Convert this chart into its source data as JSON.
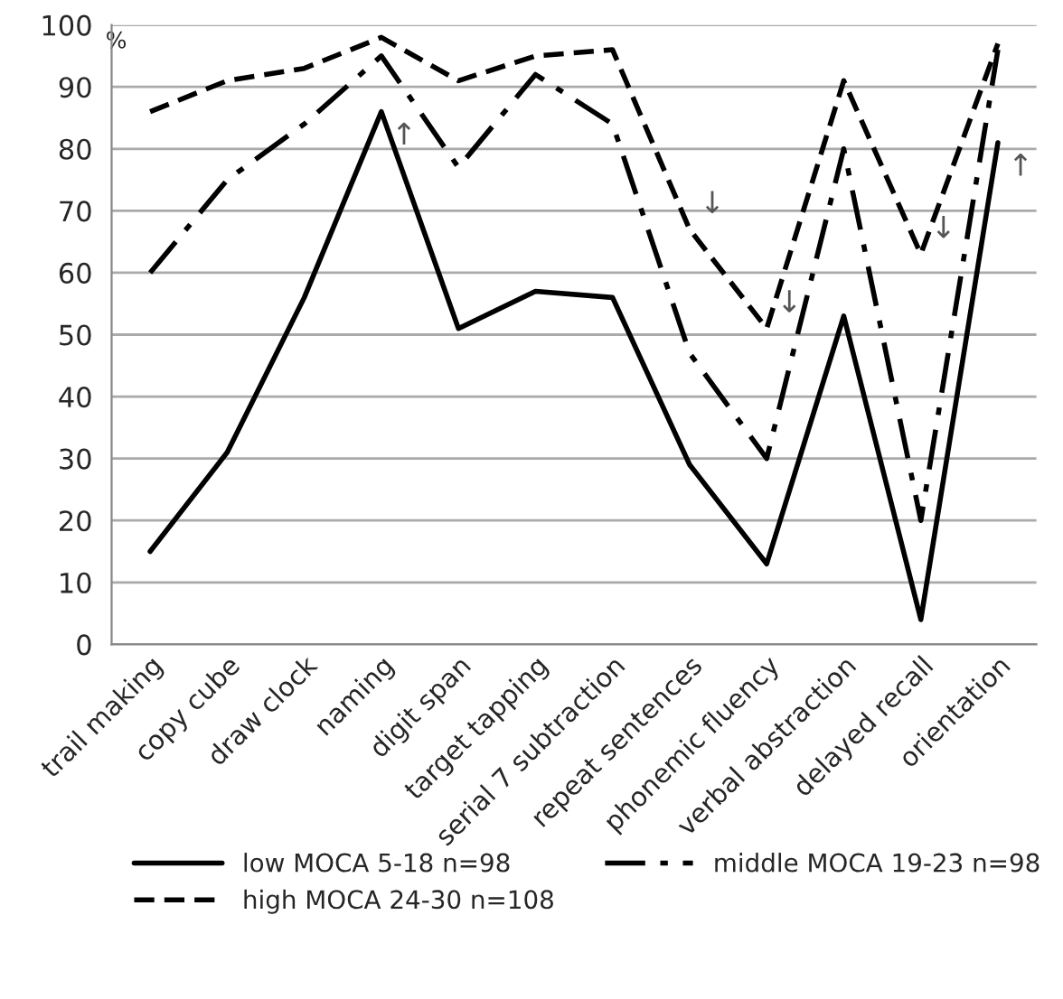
{
  "chart_data": {
    "type": "line",
    "ylabel": "%",
    "categories": [
      "trail making",
      "copy cube",
      "draw clock",
      "naming",
      "digit span",
      "target tapping",
      "serial 7 subtraction",
      "repeat sentences",
      "phonemic fluency",
      "verbal abstraction",
      "delayed recall",
      "orientation"
    ],
    "series": [
      {
        "name": "low MOCA 5-18 n=98",
        "color": "#000000",
        "line_style": "solid",
        "values": [
          15,
          31,
          56,
          86,
          51,
          57,
          56,
          29,
          13,
          53,
          4,
          81
        ]
      },
      {
        "name": "middle MOCA 19-23 n=98",
        "color": "#000000",
        "line_style": "dashdot",
        "values": [
          60,
          75,
          84,
          95,
          77,
          92,
          84,
          47,
          30,
          80,
          20,
          96
        ]
      },
      {
        "name": "high MOCA 24-30 n=108",
        "color": "#000000",
        "line_style": "dashed",
        "values": [
          86,
          91,
          93,
          98,
          91,
          95,
          96,
          67,
          51,
          91,
          63,
          97
        ]
      }
    ],
    "annotations": [
      {
        "text": "↑",
        "x": "naming",
        "y": 86
      },
      {
        "text": "↓",
        "x": "repeat sentences",
        "y": 67
      },
      {
        "text": "↓",
        "x": "phonemic fluency",
        "y": 51
      },
      {
        "text": "↓",
        "x": "delayed recall",
        "y": 63
      },
      {
        "text": "↑",
        "x": "orientation",
        "y": 81
      }
    ],
    "ylim": [
      0,
      100
    ],
    "yticks": [
      0,
      10,
      20,
      30,
      40,
      50,
      60,
      70,
      80,
      90,
      100
    ],
    "grid": "y",
    "legend": "bottom",
    "marker": "none"
  }
}
